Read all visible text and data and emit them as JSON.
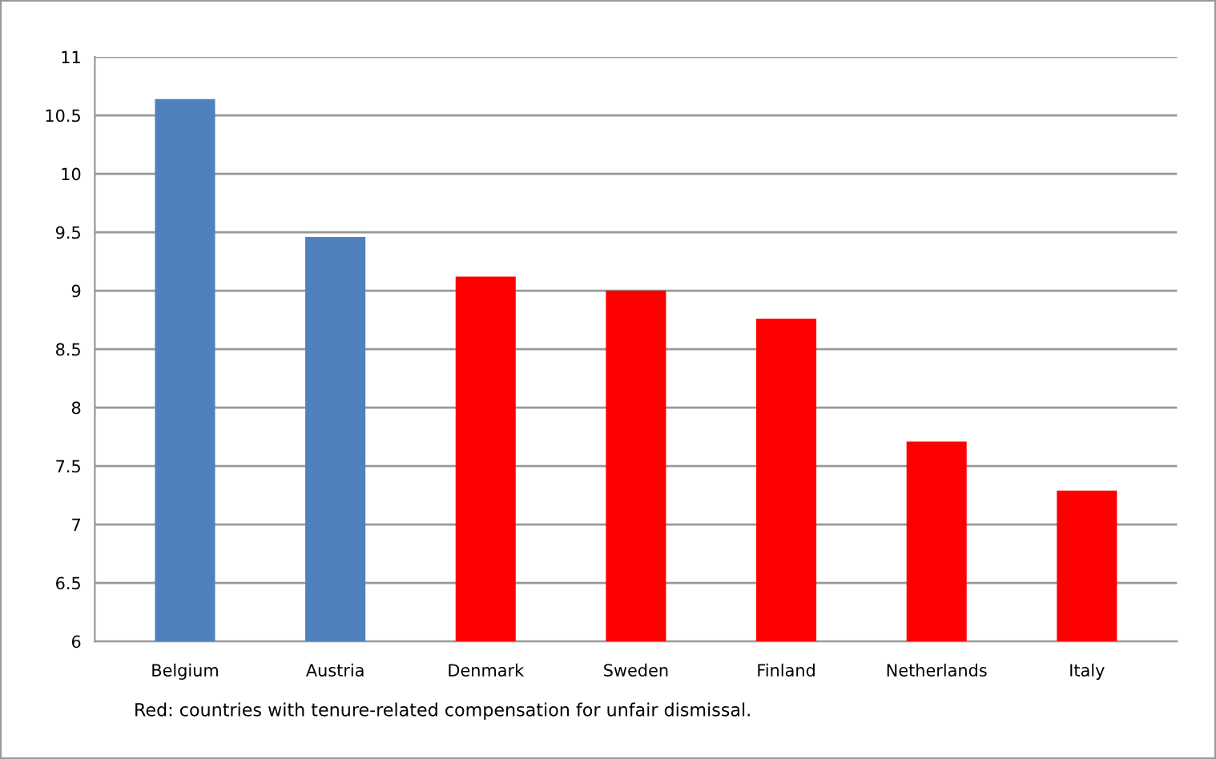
{
  "chart_data": {
    "type": "bar",
    "categories": [
      "Belgium",
      "Austria",
      "Denmark",
      "Sweden",
      "Finland",
      "Netherlands",
      "Italy"
    ],
    "values": [
      10.64,
      9.46,
      9.12,
      9.0,
      8.76,
      7.71,
      7.29
    ],
    "colors": [
      "#4f81bd",
      "#4f81bd",
      "#ff0000",
      "#ff0000",
      "#ff0000",
      "#ff0000",
      "#ff0000"
    ],
    "ylim": [
      6,
      11
    ],
    "yticks": [
      6,
      6.5,
      7,
      7.5,
      8,
      8.5,
      9,
      9.5,
      10,
      10.5,
      11
    ],
    "grid": "y",
    "annotations": [
      "Red: countries with tenure-related compensation for unfair dismissal."
    ]
  }
}
